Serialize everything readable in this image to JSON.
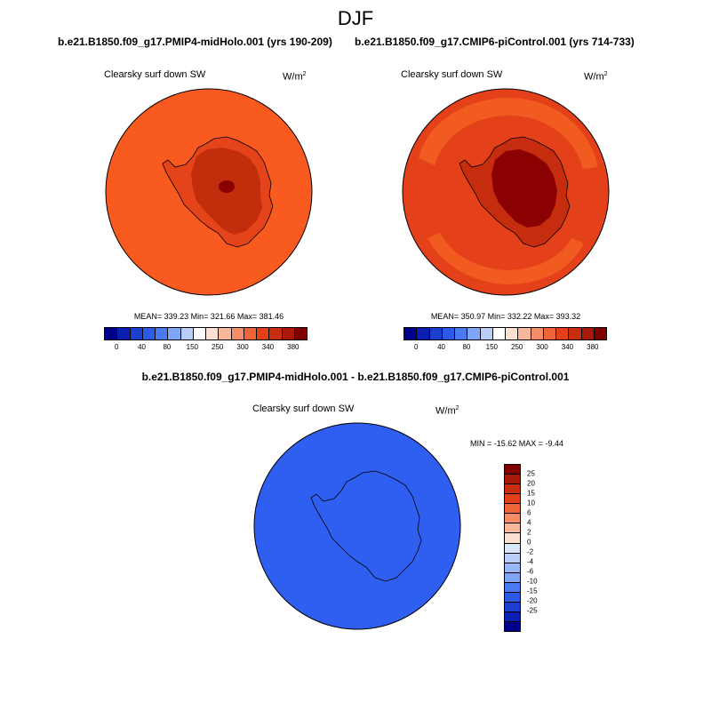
{
  "figure": {
    "season": "DJF",
    "left_title": "b.e21.B1850.f09_g17.PMIP4-midHolo.001 (yrs 190-209)",
    "right_title": "b.e21.B1850.f09_g17.CMIP6-piControl.001 (yrs 714-733)",
    "diff_title": "b.e21.B1850.f09_g17.PMIP4-midHolo.001 - b.e21.B1850.f09_g17.CMIP6-piControl.001"
  },
  "panels": {
    "left": {
      "variable": "Clearsky surf down SW",
      "unit_base": "W/m",
      "unit_exp": "2",
      "stats": "MEAN= 339.23  Min= 321.66  Max= 381.46"
    },
    "right": {
      "variable": "Clearsky surf down SW",
      "unit_base": "W/m",
      "unit_exp": "2",
      "stats": "MEAN= 350.97  Min= 332.22  Max= 393.32"
    },
    "diff": {
      "variable": "Clearsky surf down SW",
      "unit_base": "W/m",
      "unit_exp": "2",
      "minmax": "MIN = -15.62 MAX =  -9.44"
    }
  },
  "colorbar_abs": {
    "colors": [
      "#00008b",
      "#0a1fb0",
      "#1c3fd0",
      "#2d5ae8",
      "#4a7af0",
      "#7fa6f5",
      "#b8cdf8",
      "#ffffff",
      "#fce1d2",
      "#f7b89c",
      "#f48c68",
      "#ef6539",
      "#e4411a",
      "#c92d10",
      "#a8190a",
      "#800000"
    ],
    "ticks": [
      "0",
      "40",
      "80",
      "150",
      "250",
      "300",
      "340",
      "380"
    ]
  },
  "colorbar_diff": {
    "colors": [
      "#800000",
      "#a8190a",
      "#c92d10",
      "#e4411a",
      "#ef6539",
      "#f48c68",
      "#f7b89c",
      "#fce1d2",
      "#dae6f9",
      "#b8cdf8",
      "#9ab8f6",
      "#7fa6f5",
      "#4a7af0",
      "#2d5ae8",
      "#1c3fd0",
      "#0a1fb0",
      "#00008b"
    ],
    "ticks": [
      "25",
      "20",
      "15",
      "10",
      "6",
      "4",
      "2",
      "0",
      "-2",
      "-4",
      "-6",
      "-10",
      "-15",
      "-20",
      "-25"
    ]
  },
  "map_colors": {
    "left_ocean": "#f85a20",
    "left_land": "#e5441a",
    "left_interior": "#c22d0c",
    "left_core": "#8b0000",
    "right_ocean": "#e4411a",
    "right_ring": "#f25b20",
    "right_land": "#c62d0e",
    "right_interior": "#8b0000",
    "diff_fill": "#2f5ff0"
  },
  "chart_data": {
    "type": "map",
    "projection": "south polar stereographic",
    "panels": [
      {
        "name": "PMIP4-midHolo.001",
        "mean": 339.23,
        "min": 321.66,
        "max": 381.46
      },
      {
        "name": "CMIP6-piControl.001",
        "mean": 350.97,
        "min": 332.22,
        "max": 393.32
      },
      {
        "name": "difference",
        "min": -15.62,
        "max": -9.44
      }
    ],
    "abs_levels": [
      0,
      40,
      80,
      150,
      250,
      300,
      340,
      380
    ],
    "diff_levels": [
      25,
      20,
      15,
      10,
      6,
      4,
      2,
      0,
      -2,
      -4,
      -6,
      -10,
      -15,
      -20,
      -25
    ]
  }
}
